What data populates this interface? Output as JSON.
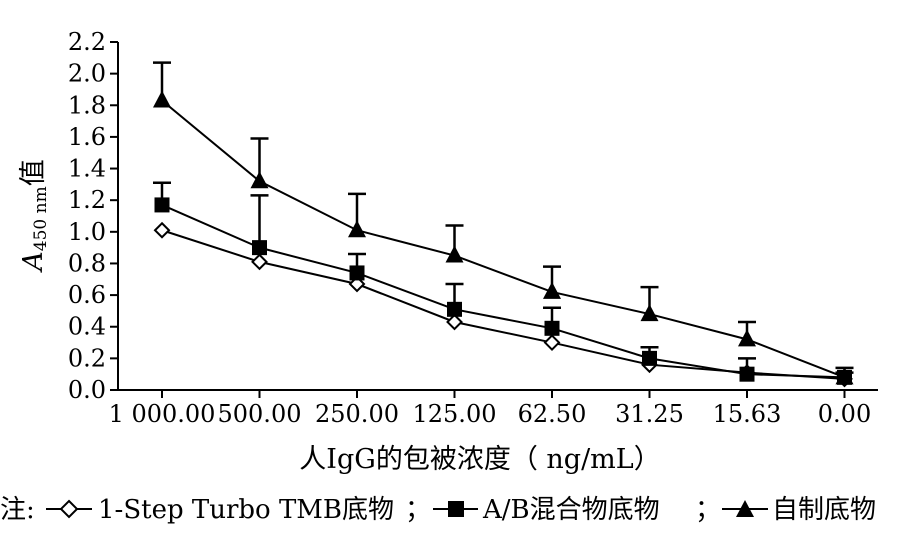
{
  "chart_data": {
    "type": "line",
    "title": "",
    "xlabel": "人IgG的包被浓度（ ng/mL）",
    "ylabel": {
      "symbol": "A",
      "subscript": "450 nm",
      "suffix": "值"
    },
    "categories": [
      "1 000.00",
      "500.00",
      "250.00",
      "125.00",
      "62.50",
      "31.25",
      "15.63",
      "0.00"
    ],
    "ylim": [
      0,
      2.2
    ],
    "yticks": [
      "0.0",
      "0.2",
      "0.4",
      "0.6",
      "0.8",
      "1.0",
      "1.2",
      "1.4",
      "1.6",
      "1.8",
      "2.0",
      "2.2"
    ],
    "grid": false,
    "legend_position": "bottom",
    "legend_prefix": "注:",
    "legend_separator": "；",
    "series": [
      {
        "name": "1-Step Turbo TMB底物",
        "marker": "diamond-open",
        "values": [
          1.01,
          0.81,
          0.67,
          0.43,
          0.3,
          0.16,
          0.11,
          0.07
        ],
        "errors": [
          0.0,
          0.0,
          0.0,
          0.0,
          0.0,
          0.0,
          0.0,
          0.0
        ]
      },
      {
        "name": "A/B混合物底物",
        "marker": "square-filled",
        "values": [
          1.17,
          0.9,
          0.74,
          0.51,
          0.39,
          0.2,
          0.1,
          0.08
        ],
        "errors": [
          0.14,
          0.33,
          0.12,
          0.16,
          0.13,
          0.07,
          0.1,
          0.03
        ]
      },
      {
        "name": "自制底物",
        "marker": "triangle-filled",
        "values": [
          1.83,
          1.32,
          1.01,
          0.85,
          0.62,
          0.48,
          0.32,
          0.08
        ],
        "errors": [
          0.24,
          0.27,
          0.23,
          0.19,
          0.16,
          0.17,
          0.11,
          0.06
        ]
      }
    ]
  }
}
